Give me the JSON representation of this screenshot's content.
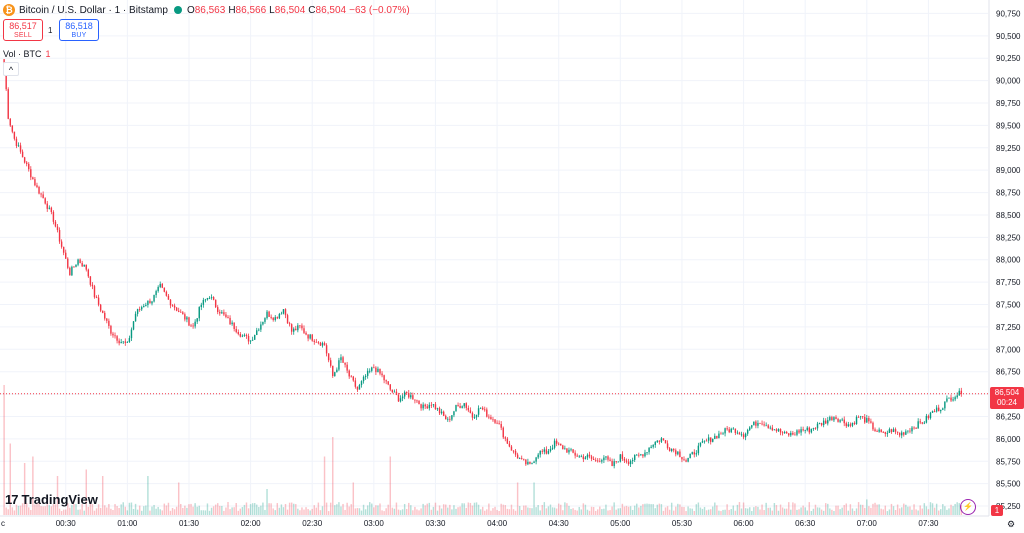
{
  "header": {
    "icon_glyph": "₿",
    "icon_name": "bitcoin-icon",
    "symbol_title": "Bitcoin / U.S. Dollar · 1 · Bitstamp",
    "ohlc": [
      {
        "k": "O",
        "v": "86,563"
      },
      {
        "k": "H",
        "v": "86,566"
      },
      {
        "k": "L",
        "v": "86,504"
      },
      {
        "k": "C",
        "v": "86,504"
      }
    ],
    "change": "−63 (−0.07%)"
  },
  "trade": {
    "sell_price": "86,517",
    "sell_label": "SELL",
    "spread": "1",
    "buy_price": "86,518",
    "buy_label": "BUY"
  },
  "volume_legend": {
    "label": "Vol · BTC",
    "value": "1"
  },
  "collapse_glyph": "^",
  "current_price": {
    "price": "86,504",
    "countdown": "00:24"
  },
  "brand": {
    "mark": "17",
    "name": "TradingView"
  },
  "notifications": "1",
  "settings_glyph": "⚙",
  "bolt_glyph": "⚡",
  "colors": {
    "up": "#089981",
    "down": "#f23645",
    "grid": "#f0f3fa",
    "axis_text": "#131722"
  },
  "chart_data": {
    "type": "candlestick",
    "title": "Bitcoin / U.S. Dollar · 1 · Bitstamp",
    "y_ticks": [
      90750,
      90500,
      90250,
      90000,
      89750,
      89500,
      89250,
      89000,
      88750,
      88500,
      88250,
      88000,
      87750,
      87500,
      87250,
      87000,
      86750,
      86500,
      86250,
      86000,
      85750,
      85500,
      85250
    ],
    "y_tick_labels": [
      "90,750",
      "90,500",
      "90,250",
      "90,000",
      "89,750",
      "89,500",
      "89,250",
      "89,000",
      "88,750",
      "88,500",
      "88,250",
      "88,000",
      "87,750",
      "87,500",
      "87,250",
      "87,000",
      "86,750",
      "86,500",
      "86,250",
      "86,000",
      "85,750",
      "85,500",
      "85,250"
    ],
    "ylim": [
      85150,
      90900
    ],
    "x_tick_labels": [
      "c",
      "00:30",
      "01:00",
      "01:30",
      "02:00",
      "02:30",
      "03:00",
      "03:30",
      "04:00",
      "04:30",
      "05:00",
      "05:30",
      "06:00",
      "06:30",
      "07:00",
      "07:30"
    ],
    "x_minutes": [
      0,
      30,
      60,
      90,
      120,
      150,
      180,
      210,
      240,
      270,
      300,
      330,
      360,
      390,
      420,
      450
    ],
    "xlim_minutes": [
      -2,
      479
    ],
    "close_path": [
      [
        0,
        90200
      ],
      [
        2,
        89600
      ],
      [
        5,
        89350
      ],
      [
        8,
        89200
      ],
      [
        12,
        89000
      ],
      [
        16,
        88800
      ],
      [
        20,
        88650
      ],
      [
        24,
        88450
      ],
      [
        28,
        88150
      ],
      [
        32,
        87850
      ],
      [
        36,
        88000
      ],
      [
        40,
        87900
      ],
      [
        44,
        87600
      ],
      [
        48,
        87400
      ],
      [
        52,
        87200
      ],
      [
        56,
        87100
      ],
      [
        60,
        87050
      ],
      [
        64,
        87400
      ],
      [
        68,
        87500
      ],
      [
        72,
        87550
      ],
      [
        76,
        87700
      ],
      [
        80,
        87550
      ],
      [
        84,
        87450
      ],
      [
        88,
        87350
      ],
      [
        92,
        87250
      ],
      [
        96,
        87500
      ],
      [
        100,
        87600
      ],
      [
        104,
        87450
      ],
      [
        108,
        87350
      ],
      [
        112,
        87250
      ],
      [
        116,
        87150
      ],
      [
        120,
        87100
      ],
      [
        124,
        87250
      ],
      [
        128,
        87400
      ],
      [
        132,
        87350
      ],
      [
        136,
        87450
      ],
      [
        140,
        87200
      ],
      [
        144,
        87250
      ],
      [
        148,
        87150
      ],
      [
        152,
        87100
      ],
      [
        156,
        87050
      ],
      [
        160,
        86700
      ],
      [
        164,
        86900
      ],
      [
        168,
        86700
      ],
      [
        172,
        86550
      ],
      [
        176,
        86700
      ],
      [
        180,
        86800
      ],
      [
        184,
        86700
      ],
      [
        188,
        86550
      ],
      [
        192,
        86450
      ],
      [
        196,
        86500
      ],
      [
        200,
        86450
      ],
      [
        204,
        86350
      ],
      [
        208,
        86400
      ],
      [
        212,
        86300
      ],
      [
        216,
        86200
      ],
      [
        220,
        86350
      ],
      [
        224,
        86400
      ],
      [
        228,
        86250
      ],
      [
        232,
        86350
      ],
      [
        236,
        86250
      ],
      [
        240,
        86200
      ],
      [
        244,
        86000
      ],
      [
        248,
        85850
      ],
      [
        252,
        85750
      ],
      [
        256,
        85700
      ],
      [
        260,
        85850
      ],
      [
        264,
        85850
      ],
      [
        268,
        85950
      ],
      [
        272,
        85900
      ],
      [
        276,
        85850
      ],
      [
        280,
        85800
      ],
      [
        284,
        85800
      ],
      [
        288,
        85750
      ],
      [
        292,
        85800
      ],
      [
        296,
        85700
      ],
      [
        300,
        85800
      ],
      [
        304,
        85750
      ],
      [
        308,
        85800
      ],
      [
        312,
        85850
      ],
      [
        316,
        85950
      ],
      [
        320,
        86000
      ],
      [
        324,
        85900
      ],
      [
        328,
        85850
      ],
      [
        332,
        85750
      ],
      [
        336,
        85850
      ],
      [
        340,
        85950
      ],
      [
        344,
        86000
      ],
      [
        348,
        86050
      ],
      [
        352,
        86100
      ],
      [
        356,
        86100
      ],
      [
        360,
        86050
      ],
      [
        364,
        86150
      ],
      [
        368,
        86200
      ],
      [
        372,
        86150
      ],
      [
        376,
        86100
      ],
      [
        380,
        86050
      ],
      [
        384,
        86050
      ],
      [
        388,
        86100
      ],
      [
        392,
        86100
      ],
      [
        396,
        86150
      ],
      [
        400,
        86200
      ],
      [
        404,
        86250
      ],
      [
        408,
        86200
      ],
      [
        412,
        86150
      ],
      [
        416,
        86250
      ],
      [
        420,
        86200
      ],
      [
        424,
        86100
      ],
      [
        428,
        86050
      ],
      [
        432,
        86100
      ],
      [
        436,
        86050
      ],
      [
        440,
        86100
      ],
      [
        444,
        86150
      ],
      [
        448,
        86200
      ],
      [
        452,
        86300
      ],
      [
        456,
        86350
      ],
      [
        460,
        86450
      ],
      [
        464,
        86500
      ],
      [
        466,
        86504
      ]
    ],
    "volume_spikes": [
      {
        "m": 0,
        "v": 1.0
      },
      {
        "m": 3,
        "v": 0.55
      },
      {
        "m": 10,
        "v": 0.4
      },
      {
        "m": 14,
        "v": 0.45
      },
      {
        "m": 26,
        "v": 0.3
      },
      {
        "m": 40,
        "v": 0.35
      },
      {
        "m": 48,
        "v": 0.3
      },
      {
        "m": 70,
        "v": 0.3
      },
      {
        "m": 85,
        "v": 0.25
      },
      {
        "m": 128,
        "v": 0.2
      },
      {
        "m": 156,
        "v": 0.45
      },
      {
        "m": 160,
        "v": 0.6
      },
      {
        "m": 170,
        "v": 0.25
      },
      {
        "m": 188,
        "v": 0.45
      },
      {
        "m": 250,
        "v": 0.25
      },
      {
        "m": 258,
        "v": 0.25
      },
      {
        "m": 420,
        "v": 0.12
      }
    ]
  }
}
